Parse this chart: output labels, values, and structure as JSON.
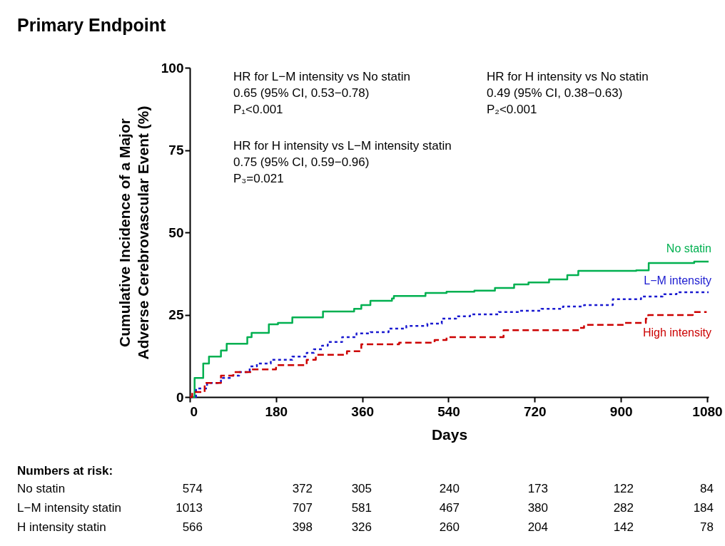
{
  "chart_data": {
    "type": "step",
    "title": "Primary Endpoint",
    "xlabel": "Days",
    "ylabel": "Cumulative Incidence of a Major\nAdverse Cerebrovascular Event (%)",
    "xlim": [
      0,
      1083
    ],
    "xticks": [
      0,
      180,
      360,
      540,
      720,
      900,
      1080
    ],
    "ylim": [
      0,
      100
    ],
    "yticks": [
      0,
      25,
      50,
      75,
      100
    ],
    "grid": false,
    "legend": false,
    "series": [
      {
        "name": "No statin",
        "color": "#00b050",
        "line_style": "solid",
        "x": [
          0,
          10,
          28,
          40,
          65,
          77,
          120,
          129,
          165,
          184,
          214,
          278,
          343,
          358,
          377,
          422,
          426,
          492,
          536,
          594,
          637,
          677,
          707,
          750,
          788,
          811,
          932,
          958,
          1053,
          1083
        ],
        "values": [
          0,
          5.8,
          10.2,
          12.3,
          14.1,
          16.2,
          18.2,
          19.5,
          22.1,
          22.5,
          24.2,
          26,
          26.8,
          27.9,
          29.2,
          29.9,
          30.7,
          31.6,
          32,
          32.3,
          33.1,
          34.2,
          34.8,
          35.7,
          37,
          38.3,
          38.5,
          40.7,
          41.1,
          41.1
        ]
      },
      {
        "name": "L−M intensity",
        "color": "#1a1ad0",
        "line_style": "dotted",
        "x": [
          0,
          13,
          36,
          65,
          88,
          103,
          125,
          140,
          169,
          214,
          244,
          259,
          276,
          288,
          318,
          348,
          377,
          415,
          452,
          496,
          526,
          556,
          585,
          645,
          689,
          734,
          779,
          823,
          883,
          942,
          987,
          1016,
          1083
        ],
        "values": [
          0,
          2.6,
          4.3,
          5.8,
          6.5,
          7.6,
          9.3,
          10.2,
          11.3,
          12.3,
          13.4,
          14.5,
          15.6,
          16.7,
          18.2,
          19.3,
          19.7,
          20.8,
          21.6,
          22.3,
          23.8,
          24.5,
          25.1,
          25.8,
          26.2,
          26.8,
          27.5,
          27.9,
          29.7,
          30.5,
          31.2,
          31.8,
          31.8
        ]
      },
      {
        "name": "High intensity",
        "color": "#cc0000",
        "line_style": "dashed",
        "x": [
          0,
          5,
          31,
          65,
          91,
          129,
          180,
          244,
          263,
          328,
          358,
          437,
          511,
          536,
          655,
          813,
          823,
          908,
          952,
          957,
          1050,
          1079
        ],
        "values": [
          0,
          1.5,
          4.3,
          6.5,
          7.6,
          8.4,
          9.7,
          11.3,
          12.8,
          13.9,
          16,
          16.5,
          17.3,
          18.2,
          20.3,
          21,
          21.9,
          22.5,
          23.8,
          24.9,
          25.8,
          25.8
        ]
      }
    ],
    "annotations": [
      "HR for L−M intensity vs No statin\n0.65 (95% CI, 0.53−0.78)\nP₁<0.001",
      "HR for H intensity vs No statin\n0.49 (95% CI, 0.38−0.63)\nP₂<0.001",
      "HR for H intensity vs L−M intensity statin\n0.75 (95% CI, 0.59−0.96)\nP₃=0.021",
      "Numbers at risk:",
      "No statin\t574\t372\t305\t240\t173\t122\t84",
      "L−M intensity statin\t1013\t707\t581\t467\t380\t282\t184",
      "H intensity statin\t566\t398\t326\t260\t204\t142\t78"
    ]
  }
}
